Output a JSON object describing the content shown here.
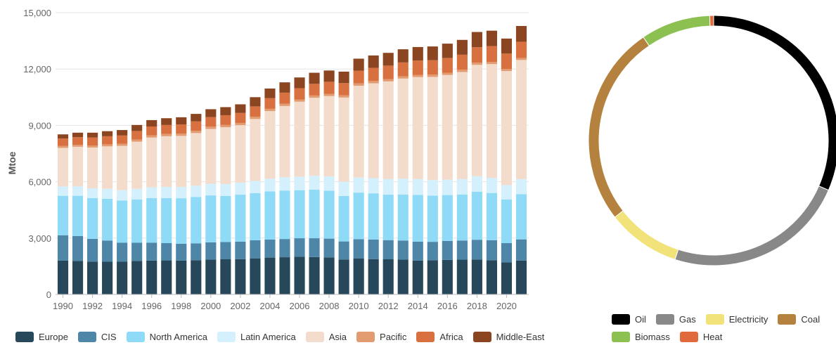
{
  "chart_data": [
    {
      "type": "bar",
      "stacked": true,
      "ylabel": "Mtoe",
      "ylim": [
        0,
        15000
      ],
      "yticks": [
        "0",
        "3,000",
        "6,000",
        "9,000",
        "12,000",
        "15,000"
      ],
      "ytick_values": [
        0,
        3000,
        6000,
        9000,
        12000,
        15000
      ],
      "categories": [
        "1990",
        "1991",
        "1992",
        "1993",
        "1994",
        "1995",
        "1996",
        "1997",
        "1998",
        "1999",
        "2000",
        "2001",
        "2002",
        "2003",
        "2004",
        "2005",
        "2006",
        "2007",
        "2008",
        "2009",
        "2010",
        "2011",
        "2012",
        "2013",
        "2014",
        "2015",
        "2016",
        "2017",
        "2018",
        "2019",
        "2020",
        "2021"
      ],
      "xtick_labels": [
        "1990",
        "1992",
        "1994",
        "1996",
        "1998",
        "2000",
        "2002",
        "2004",
        "2006",
        "2008",
        "2010",
        "2012",
        "2014",
        "2016",
        "2018",
        "2020"
      ],
      "grid": true,
      "legend_position": "bottom",
      "series": [
        {
          "name": "Europe",
          "color": "#27485a",
          "values": [
            1800,
            1780,
            1750,
            1740,
            1740,
            1780,
            1800,
            1810,
            1800,
            1820,
            1850,
            1870,
            1880,
            1920,
            1960,
            1980,
            2000,
            1990,
            1970,
            1860,
            1920,
            1880,
            1870,
            1850,
            1800,
            1820,
            1840,
            1850,
            1850,
            1820,
            1700,
            1800
          ]
        },
        {
          "name": "CIS",
          "color": "#4e86a8",
          "values": [
            1350,
            1330,
            1210,
            1130,
            1010,
            970,
            950,
            920,
            900,
            900,
            920,
            920,
            930,
            960,
            960,
            970,
            990,
            1000,
            1000,
            960,
            1020,
            1040,
            1020,
            1020,
            1010,
            980,
            1010,
            1020,
            1060,
            1060,
            1030,
            1130
          ]
        },
        {
          "name": "North America",
          "color": "#8fdbf7",
          "values": [
            2100,
            2140,
            2170,
            2220,
            2250,
            2310,
            2380,
            2400,
            2420,
            2470,
            2500,
            2450,
            2500,
            2510,
            2560,
            2580,
            2560,
            2590,
            2550,
            2420,
            2480,
            2460,
            2420,
            2450,
            2490,
            2460,
            2440,
            2450,
            2560,
            2520,
            2330,
            2410
          ]
        },
        {
          "name": "Latin America",
          "color": "#d3f0fc",
          "values": [
            500,
            510,
            520,
            530,
            550,
            560,
            570,
            590,
            600,
            600,
            620,
            630,
            640,
            650,
            680,
            700,
            720,
            740,
            760,
            760,
            800,
            810,
            830,
            840,
            840,
            830,
            820,
            820,
            820,
            810,
            760,
            800
          ]
        },
        {
          "name": "Asia",
          "color": "#f4dccc",
          "values": [
            2050,
            2100,
            2170,
            2260,
            2360,
            2510,
            2650,
            2700,
            2720,
            2800,
            2920,
            3030,
            3060,
            3300,
            3600,
            3800,
            3990,
            4150,
            4280,
            4480,
            4890,
            5050,
            5200,
            5330,
            5430,
            5490,
            5570,
            5700,
            5930,
            6050,
            6070,
            6340
          ]
        },
        {
          "name": "Pacific",
          "color": "#e39b72",
          "values": [
            100,
            100,
            110,
            110,
            110,
            120,
            120,
            120,
            120,
            120,
            120,
            120,
            120,
            120,
            120,
            120,
            120,
            120,
            120,
            120,
            120,
            120,
            120,
            120,
            120,
            120,
            120,
            120,
            120,
            120,
            110,
            110
          ]
        },
        {
          "name": "Africa",
          "color": "#d8713f",
          "values": [
            400,
            410,
            420,
            430,
            440,
            450,
            470,
            480,
            490,
            500,
            510,
            520,
            530,
            550,
            570,
            590,
            600,
            620,
            640,
            650,
            680,
            700,
            720,
            740,
            760,
            770,
            790,
            800,
            820,
            840,
            820,
            860
          ]
        },
        {
          "name": "Middle-East",
          "color": "#8b4520",
          "values": [
            220,
            240,
            260,
            270,
            290,
            320,
            340,
            360,
            380,
            400,
            420,
            430,
            460,
            490,
            510,
            550,
            570,
            590,
            600,
            610,
            640,
            660,
            680,
            700,
            720,
            730,
            760,
            790,
            810,
            820,
            800,
            840
          ]
        }
      ]
    },
    {
      "type": "pie",
      "donut": true,
      "legend_position": "bottom",
      "categories": [
        "Oil",
        "Gas",
        "Electricity",
        "Coal",
        "Biomass",
        "Heat"
      ],
      "colors": [
        "#000000",
        "#888888",
        "#f2e27a",
        "#b5813f",
        "#8cc152",
        "#e06a3b"
      ],
      "values": [
        31.5,
        23.5,
        9.5,
        26,
        9,
        0.5
      ]
    }
  ]
}
